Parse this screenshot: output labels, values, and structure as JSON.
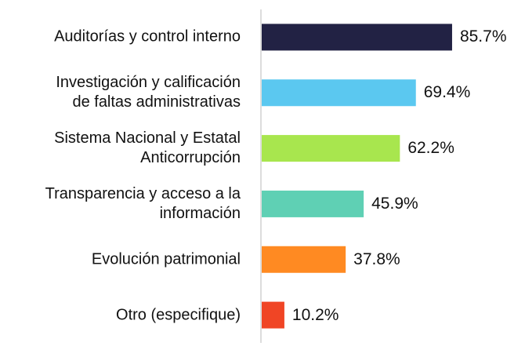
{
  "chart_data": {
    "type": "bar",
    "orientation": "horizontal",
    "categories": [
      "Auditorías y control interno",
      "Investigación y calificación\nde faltas administrativas",
      "Sistema Nacional y Estatal\nAnticorrupción",
      "Transparencia y acceso a la\ninformación",
      "Evolución patrimonial",
      "Otro (especifique)"
    ],
    "values": [
      85.7,
      69.4,
      62.2,
      45.9,
      37.8,
      10.2
    ],
    "value_labels": [
      "85.7%",
      "69.4%",
      "62.2%",
      "45.9%",
      "37.8%",
      "10.2%"
    ],
    "colors": [
      "#222244",
      "#5bc8f0",
      "#a8e64e",
      "#5fd0b4",
      "#ff8a22",
      "#f04525"
    ]
  }
}
